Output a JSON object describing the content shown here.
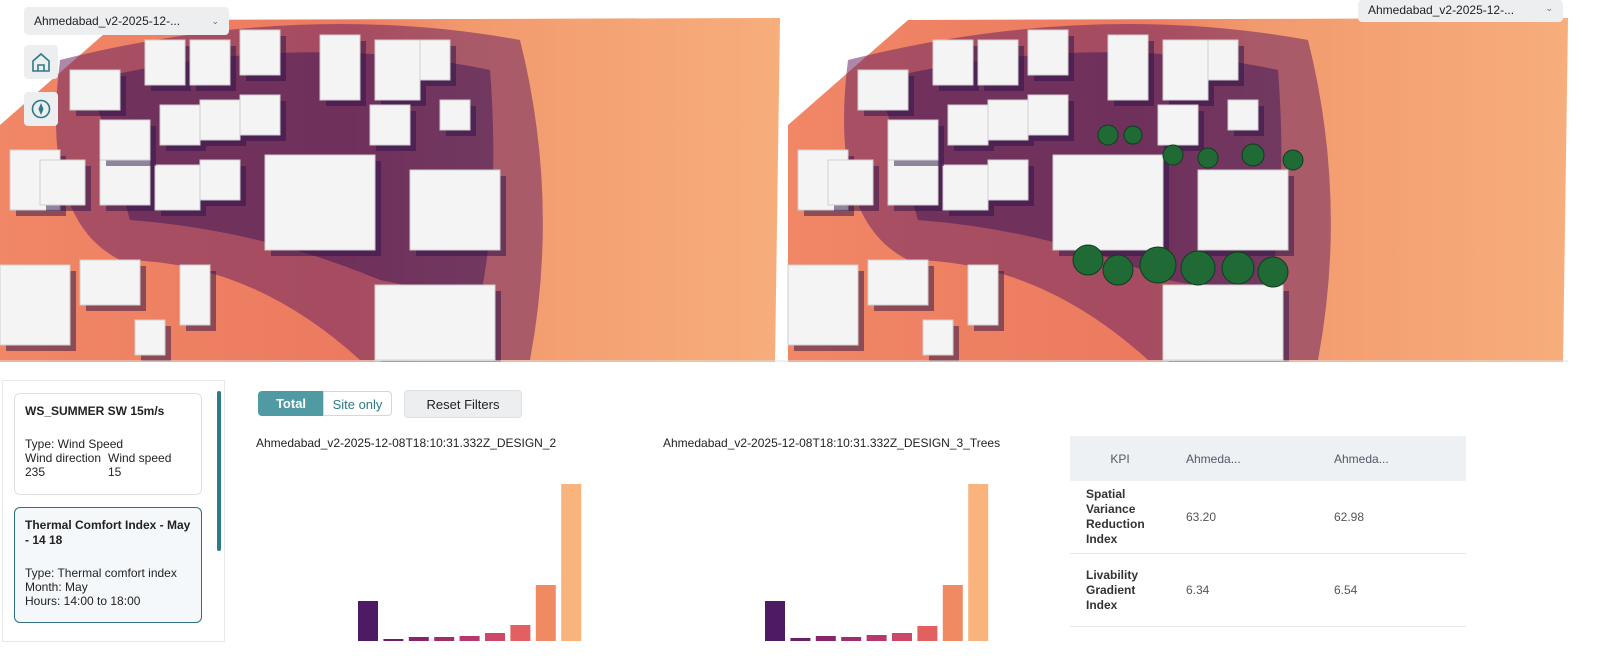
{
  "viewports": [
    {
      "scenario_select": "Ahmedabad_v2-2025-12-..."
    },
    {
      "scenario_select": "Ahmedabad_v2-2025-12-..."
    }
  ],
  "scenarios": [
    {
      "title": "WS_SUMMER SW 15m/s",
      "lines": [
        "Type: Wind Speed"
      ],
      "fields": [
        {
          "label": "Wind direction",
          "value": "235"
        },
        {
          "label": "Wind speed",
          "value": "15"
        }
      ]
    },
    {
      "title": "Thermal Comfort Index - May - 14 18",
      "lines": [
        "Type: Thermal comfort index",
        "Month: May",
        "Hours: 14:00 to 18:00"
      ]
    }
  ],
  "filters": {
    "toggle": [
      "Total",
      "Site only"
    ],
    "reset": "Reset Filters"
  },
  "chart_data": [
    {
      "type": "bar",
      "title": "Ahmedabad_v2-2025-12-08T18:10:31.332Z_DESIGN_2",
      "categories": [
        null,
        null,
        null,
        null,
        null,
        null,
        null,
        null,
        null
      ],
      "values": [
        40,
        2,
        4,
        4,
        5,
        8,
        16,
        56,
        157
      ],
      "colors": [
        "#4e1a63",
        "#6a1f66",
        "#86256b",
        "#9f2d6b",
        "#b7386b",
        "#cd4868",
        "#e26060",
        "#ef8a62",
        "#f8b47c"
      ]
    },
    {
      "type": "bar",
      "title": "Ahmedabad_v2-2025-12-08T18:10:31.332Z_DESIGN_3_Trees",
      "categories": [
        null,
        null,
        null,
        null,
        null,
        null,
        null,
        null,
        null
      ],
      "values": [
        40,
        3,
        5,
        4,
        6,
        8,
        15,
        56,
        157
      ],
      "colors": [
        "#4e1a63",
        "#6a1f66",
        "#86256b",
        "#9f2d6b",
        "#b7386b",
        "#cd4868",
        "#e26060",
        "#ef8a62",
        "#f8b47c"
      ]
    }
  ],
  "kpi_table": {
    "header": [
      "KPI",
      "Ahmeda...",
      "Ahmeda..."
    ],
    "rows": [
      [
        "Spatial Variance Reduction Index",
        "63.20",
        "62.98"
      ],
      [
        "Livability Gradient Index",
        "6.34",
        "6.54"
      ]
    ]
  }
}
